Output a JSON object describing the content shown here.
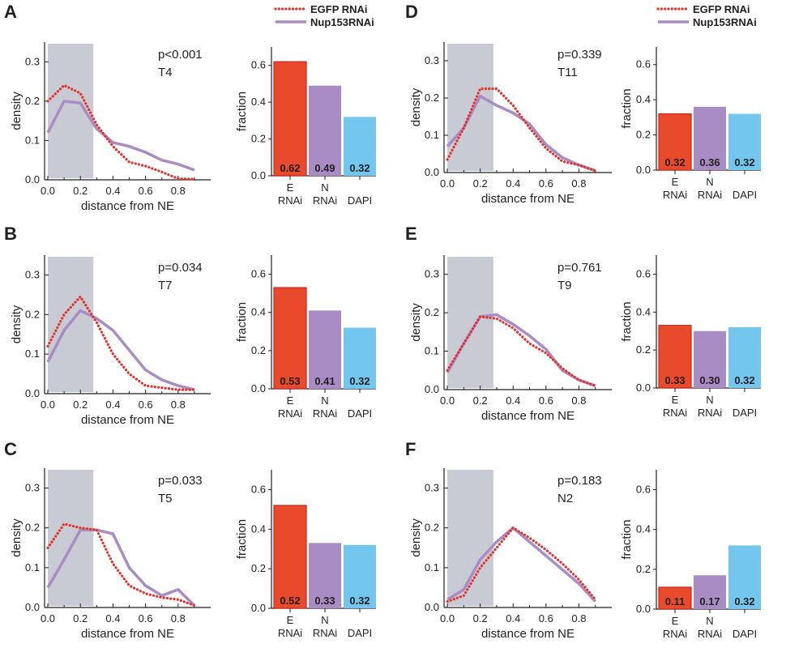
{
  "legend": [
    {
      "name": "EGFP RNAi",
      "color": "#e8312b",
      "style": "dotted"
    },
    {
      "name": "Nup153RNAi",
      "color": "#a98cc4",
      "style": "solid"
    }
  ],
  "chart_data": [
    {
      "panel": "A",
      "type": "line",
      "annotation_p": "p<0.001",
      "annotation_t": "T4",
      "xlabel": "distance from NE",
      "ylabel": "density",
      "xlim": [
        -0.02,
        1.0
      ],
      "ylim": [
        0,
        0.35
      ],
      "xticks": [
        0.0,
        0.2,
        0.4,
        0.6,
        0.8
      ],
      "yticks": [
        0.0,
        0.1,
        0.2,
        0.3
      ],
      "shade_x": [
        0.0,
        0.28
      ],
      "series": [
        {
          "name": "EGFP RNAi",
          "x": [
            0,
            0.1,
            0.2,
            0.3,
            0.4,
            0.5,
            0.6,
            0.7,
            0.8,
            0.9
          ],
          "y": [
            0.2,
            0.24,
            0.22,
            0.14,
            0.085,
            0.045,
            0.035,
            0.02,
            0.003,
            0.002
          ]
        },
        {
          "name": "Nup153RNAi",
          "x": [
            0,
            0.1,
            0.2,
            0.3,
            0.4,
            0.5,
            0.6,
            0.7,
            0.8,
            0.9
          ],
          "y": [
            0.12,
            0.2,
            0.195,
            0.13,
            0.095,
            0.085,
            0.07,
            0.05,
            0.04,
            0.025
          ]
        }
      ]
    },
    {
      "panel": "B",
      "type": "line",
      "annotation_p": "p=0.034",
      "annotation_t": "T7",
      "xlabel": "distance from NE",
      "ylabel": "density",
      "xlim": [
        -0.02,
        1.0
      ],
      "ylim": [
        0,
        0.35
      ],
      "xticks": [
        0.0,
        0.2,
        0.4,
        0.6,
        0.8
      ],
      "yticks": [
        0.0,
        0.1,
        0.2,
        0.3
      ],
      "shade_x": [
        0.0,
        0.28
      ],
      "series": [
        {
          "name": "EGFP RNAi",
          "x": [
            0,
            0.1,
            0.2,
            0.3,
            0.4,
            0.5,
            0.6,
            0.7,
            0.8,
            0.9
          ],
          "y": [
            0.12,
            0.2,
            0.245,
            0.18,
            0.1,
            0.05,
            0.02,
            0.015,
            0.01,
            0.01
          ]
        },
        {
          "name": "Nup153RNAi",
          "x": [
            0,
            0.1,
            0.2,
            0.3,
            0.4,
            0.5,
            0.6,
            0.7,
            0.8,
            0.9
          ],
          "y": [
            0.08,
            0.16,
            0.21,
            0.19,
            0.16,
            0.11,
            0.06,
            0.035,
            0.02,
            0.01
          ]
        }
      ]
    },
    {
      "panel": "C",
      "type": "line",
      "annotation_p": "p=0.033",
      "annotation_t": "T5",
      "xlabel": "distance from NE",
      "ylabel": "density",
      "xlim": [
        -0.02,
        1.0
      ],
      "ylim": [
        0,
        0.35
      ],
      "xticks": [
        0.0,
        0.2,
        0.4,
        0.6,
        0.8
      ],
      "yticks": [
        0.0,
        0.1,
        0.2,
        0.3
      ],
      "shade_x": [
        0.0,
        0.28
      ],
      "series": [
        {
          "name": "EGFP RNAi",
          "x": [
            0,
            0.1,
            0.2,
            0.3,
            0.4,
            0.5,
            0.6,
            0.7,
            0.8,
            0.9
          ],
          "y": [
            0.15,
            0.21,
            0.2,
            0.195,
            0.11,
            0.055,
            0.035,
            0.025,
            0.02,
            0.005
          ]
        },
        {
          "name": "Nup153RNAi",
          "x": [
            0,
            0.1,
            0.2,
            0.3,
            0.4,
            0.5,
            0.6,
            0.7,
            0.8,
            0.9
          ],
          "y": [
            0.05,
            0.12,
            0.195,
            0.195,
            0.185,
            0.1,
            0.055,
            0.03,
            0.045,
            0.005
          ]
        }
      ]
    },
    {
      "panel": "D",
      "type": "line",
      "annotation_p": "p=0.339",
      "annotation_t": "T11",
      "xlabel": "distance from NE",
      "ylabel": "density",
      "xlim": [
        -0.02,
        1.0
      ],
      "ylim": [
        0,
        0.35
      ],
      "xticks": [
        0.0,
        0.2,
        0.4,
        0.6,
        0.8
      ],
      "yticks": [
        0.0,
        0.1,
        0.2,
        0.3
      ],
      "shade_x": [
        0.0,
        0.28
      ],
      "series": [
        {
          "name": "EGFP RNAi",
          "x": [
            0,
            0.1,
            0.2,
            0.3,
            0.4,
            0.5,
            0.6,
            0.7,
            0.8,
            0.9
          ],
          "y": [
            0.035,
            0.12,
            0.225,
            0.225,
            0.18,
            0.12,
            0.065,
            0.03,
            0.02,
            0.005
          ]
        },
        {
          "name": "Nup153RNAi",
          "x": [
            0,
            0.1,
            0.2,
            0.3,
            0.4,
            0.5,
            0.6,
            0.7,
            0.8,
            0.9
          ],
          "y": [
            0.07,
            0.12,
            0.205,
            0.18,
            0.16,
            0.13,
            0.075,
            0.04,
            0.02,
            0.005
          ]
        }
      ]
    },
    {
      "panel": "E",
      "type": "line",
      "annotation_p": "p=0.761",
      "annotation_t": "T9",
      "xlabel": "distance from NE",
      "ylabel": "density",
      "xlim": [
        -0.02,
        1.0
      ],
      "ylim": [
        0,
        0.35
      ],
      "xticks": [
        0.0,
        0.2,
        0.4,
        0.6,
        0.8
      ],
      "yticks": [
        0.0,
        0.1,
        0.2,
        0.3
      ],
      "shade_x": [
        0.0,
        0.28
      ],
      "series": [
        {
          "name": "EGFP RNAi",
          "x": [
            0,
            0.1,
            0.2,
            0.3,
            0.4,
            0.5,
            0.6,
            0.7,
            0.8,
            0.9
          ],
          "y": [
            0.05,
            0.12,
            0.19,
            0.185,
            0.16,
            0.12,
            0.095,
            0.055,
            0.025,
            0.01
          ]
        },
        {
          "name": "Nup153RNAi",
          "x": [
            0,
            0.1,
            0.2,
            0.3,
            0.4,
            0.5,
            0.6,
            0.7,
            0.8,
            0.9
          ],
          "y": [
            0.045,
            0.12,
            0.19,
            0.195,
            0.17,
            0.14,
            0.105,
            0.05,
            0.025,
            0.01
          ]
        }
      ]
    },
    {
      "panel": "F",
      "type": "line",
      "annotation_p": "p=0.183",
      "annotation_t": "N2",
      "xlabel": "distance from NE",
      "ylabel": "density",
      "xlim": [
        -0.02,
        1.0
      ],
      "ylim": [
        0,
        0.35
      ],
      "xticks": [
        0.0,
        0.2,
        0.4,
        0.6,
        0.8
      ],
      "yticks": [
        0.0,
        0.1,
        0.2,
        0.3
      ],
      "shade_x": [
        0.0,
        0.28
      ],
      "series": [
        {
          "name": "EGFP RNAi",
          "x": [
            0,
            0.1,
            0.2,
            0.3,
            0.4,
            0.5,
            0.6,
            0.7,
            0.8,
            0.9
          ],
          "y": [
            0.015,
            0.03,
            0.1,
            0.15,
            0.2,
            0.175,
            0.145,
            0.11,
            0.07,
            0.02
          ]
        },
        {
          "name": "Nup153RNAi",
          "x": [
            0,
            0.1,
            0.2,
            0.3,
            0.4,
            0.5,
            0.6,
            0.7,
            0.8,
            0.9
          ],
          "y": [
            0.02,
            0.045,
            0.12,
            0.165,
            0.2,
            0.165,
            0.13,
            0.095,
            0.06,
            0.015
          ]
        }
      ]
    },
    {
      "panel": "A",
      "type": "bar",
      "ylabel": "fraction",
      "ylim": [
        0,
        0.7
      ],
      "yticks": [
        0.0,
        0.2,
        0.4,
        0.6
      ],
      "categories": [
        [
          "E",
          "RNAi"
        ],
        [
          "N",
          "RNAi"
        ],
        [
          "",
          "DAPI"
        ]
      ],
      "values": [
        0.62,
        0.49,
        0.32
      ],
      "labels": [
        "0.62",
        "0.49",
        "0.32"
      ],
      "colors": [
        "#e84a2b",
        "#a98cc4",
        "#73c6ed"
      ]
    },
    {
      "panel": "B",
      "type": "bar",
      "ylabel": "fraction",
      "ylim": [
        0,
        0.7
      ],
      "yticks": [
        0.0,
        0.2,
        0.4,
        0.6
      ],
      "categories": [
        [
          "E",
          "RNAi"
        ],
        [
          "N",
          "RNAi"
        ],
        [
          "",
          "DAPI"
        ]
      ],
      "values": [
        0.53,
        0.41,
        0.32
      ],
      "labels": [
        "0.53",
        "0.41",
        "0.32"
      ],
      "colors": [
        "#e84a2b",
        "#a98cc4",
        "#73c6ed"
      ]
    },
    {
      "panel": "C",
      "type": "bar",
      "ylabel": "fraction",
      "ylim": [
        0,
        0.7
      ],
      "yticks": [
        0.0,
        0.2,
        0.4,
        0.6
      ],
      "categories": [
        [
          "E",
          "RNAi"
        ],
        [
          "N",
          "RNAi"
        ],
        [
          "",
          "DAPI"
        ]
      ],
      "values": [
        0.52,
        0.33,
        0.32
      ],
      "labels": [
        "0.52",
        "0.33",
        "0.32"
      ],
      "colors": [
        "#e84a2b",
        "#a98cc4",
        "#73c6ed"
      ]
    },
    {
      "panel": "D",
      "type": "bar",
      "ylabel": "fraction",
      "ylim": [
        0,
        0.7
      ],
      "yticks": [
        0.0,
        0.2,
        0.4,
        0.6
      ],
      "categories": [
        [
          "E",
          "RNAi"
        ],
        [
          "N",
          "RNAi"
        ],
        [
          "",
          "DAPI"
        ]
      ],
      "values": [
        0.32,
        0.36,
        0.32
      ],
      "labels": [
        "0.32",
        "0.36",
        "0.32"
      ],
      "colors": [
        "#e84a2b",
        "#a98cc4",
        "#73c6ed"
      ]
    },
    {
      "panel": "E",
      "type": "bar",
      "ylabel": "fraction",
      "ylim": [
        0,
        0.7
      ],
      "yticks": [
        0.0,
        0.2,
        0.4,
        0.6
      ],
      "categories": [
        [
          "E",
          "RNAi"
        ],
        [
          "N",
          "RNAi"
        ],
        [
          "",
          "DAPI"
        ]
      ],
      "values": [
        0.33,
        0.3,
        0.32
      ],
      "labels": [
        "0.33",
        "0.30",
        "0.32"
      ],
      "colors": [
        "#e84a2b",
        "#a98cc4",
        "#73c6ed"
      ]
    },
    {
      "panel": "F",
      "type": "bar",
      "ylabel": "fraction",
      "ylim": [
        0,
        0.7
      ],
      "yticks": [
        0.0,
        0.2,
        0.4,
        0.6
      ],
      "categories": [
        [
          "E",
          "RNAi"
        ],
        [
          "N",
          "RNAi"
        ],
        [
          "",
          "DAPI"
        ]
      ],
      "values": [
        0.11,
        0.17,
        0.32
      ],
      "labels": [
        "0.11",
        "0.17",
        "0.32"
      ],
      "colors": [
        "#e84a2b",
        "#a98cc4",
        "#73c6ed"
      ]
    }
  ]
}
